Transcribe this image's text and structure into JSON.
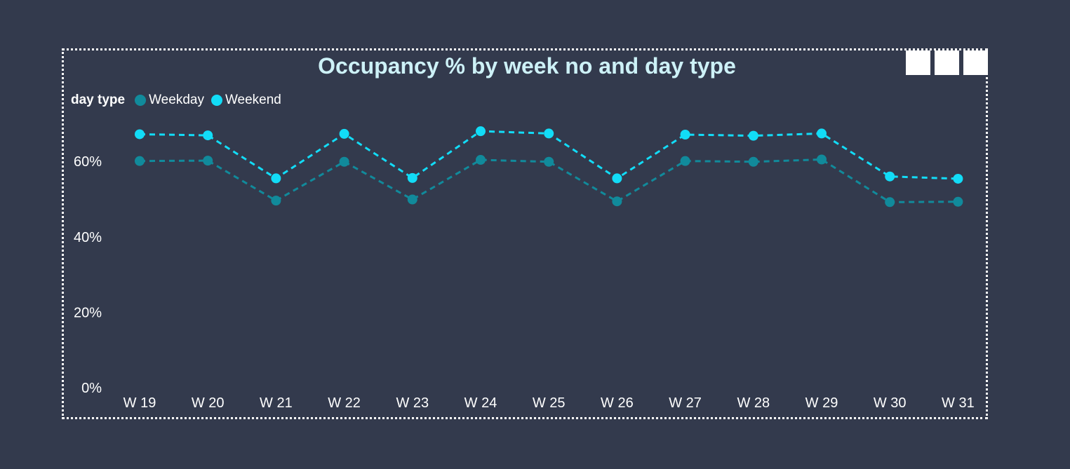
{
  "chart_data": {
    "type": "line",
    "title": "Occupancy % by week no and day type",
    "legend_title": "day type",
    "legend_position": "top-left",
    "categories": [
      "W 19",
      "W 20",
      "W 21",
      "W 22",
      "W 23",
      "W 24",
      "W 25",
      "W 26",
      "W 27",
      "W 28",
      "W 29",
      "W 30",
      "W 31"
    ],
    "series": [
      {
        "name": "Weekday",
        "color": "#118a9b",
        "values": [
          60.1,
          60.2,
          49.6,
          59.9,
          49.9,
          60.4,
          59.9,
          49.4,
          60.1,
          59.9,
          60.5,
          49.2,
          49.3
        ]
      },
      {
        "name": "Weekend",
        "color": "#12dcf7",
        "values": [
          67.2,
          66.9,
          55.5,
          67.3,
          55.6,
          68.0,
          67.4,
          55.5,
          67.1,
          66.8,
          67.4,
          56.0,
          55.4
        ]
      }
    ],
    "y_ticks": [
      "0%",
      "20%",
      "40%",
      "60%"
    ],
    "ylim": [
      0,
      70
    ],
    "grid": false
  }
}
